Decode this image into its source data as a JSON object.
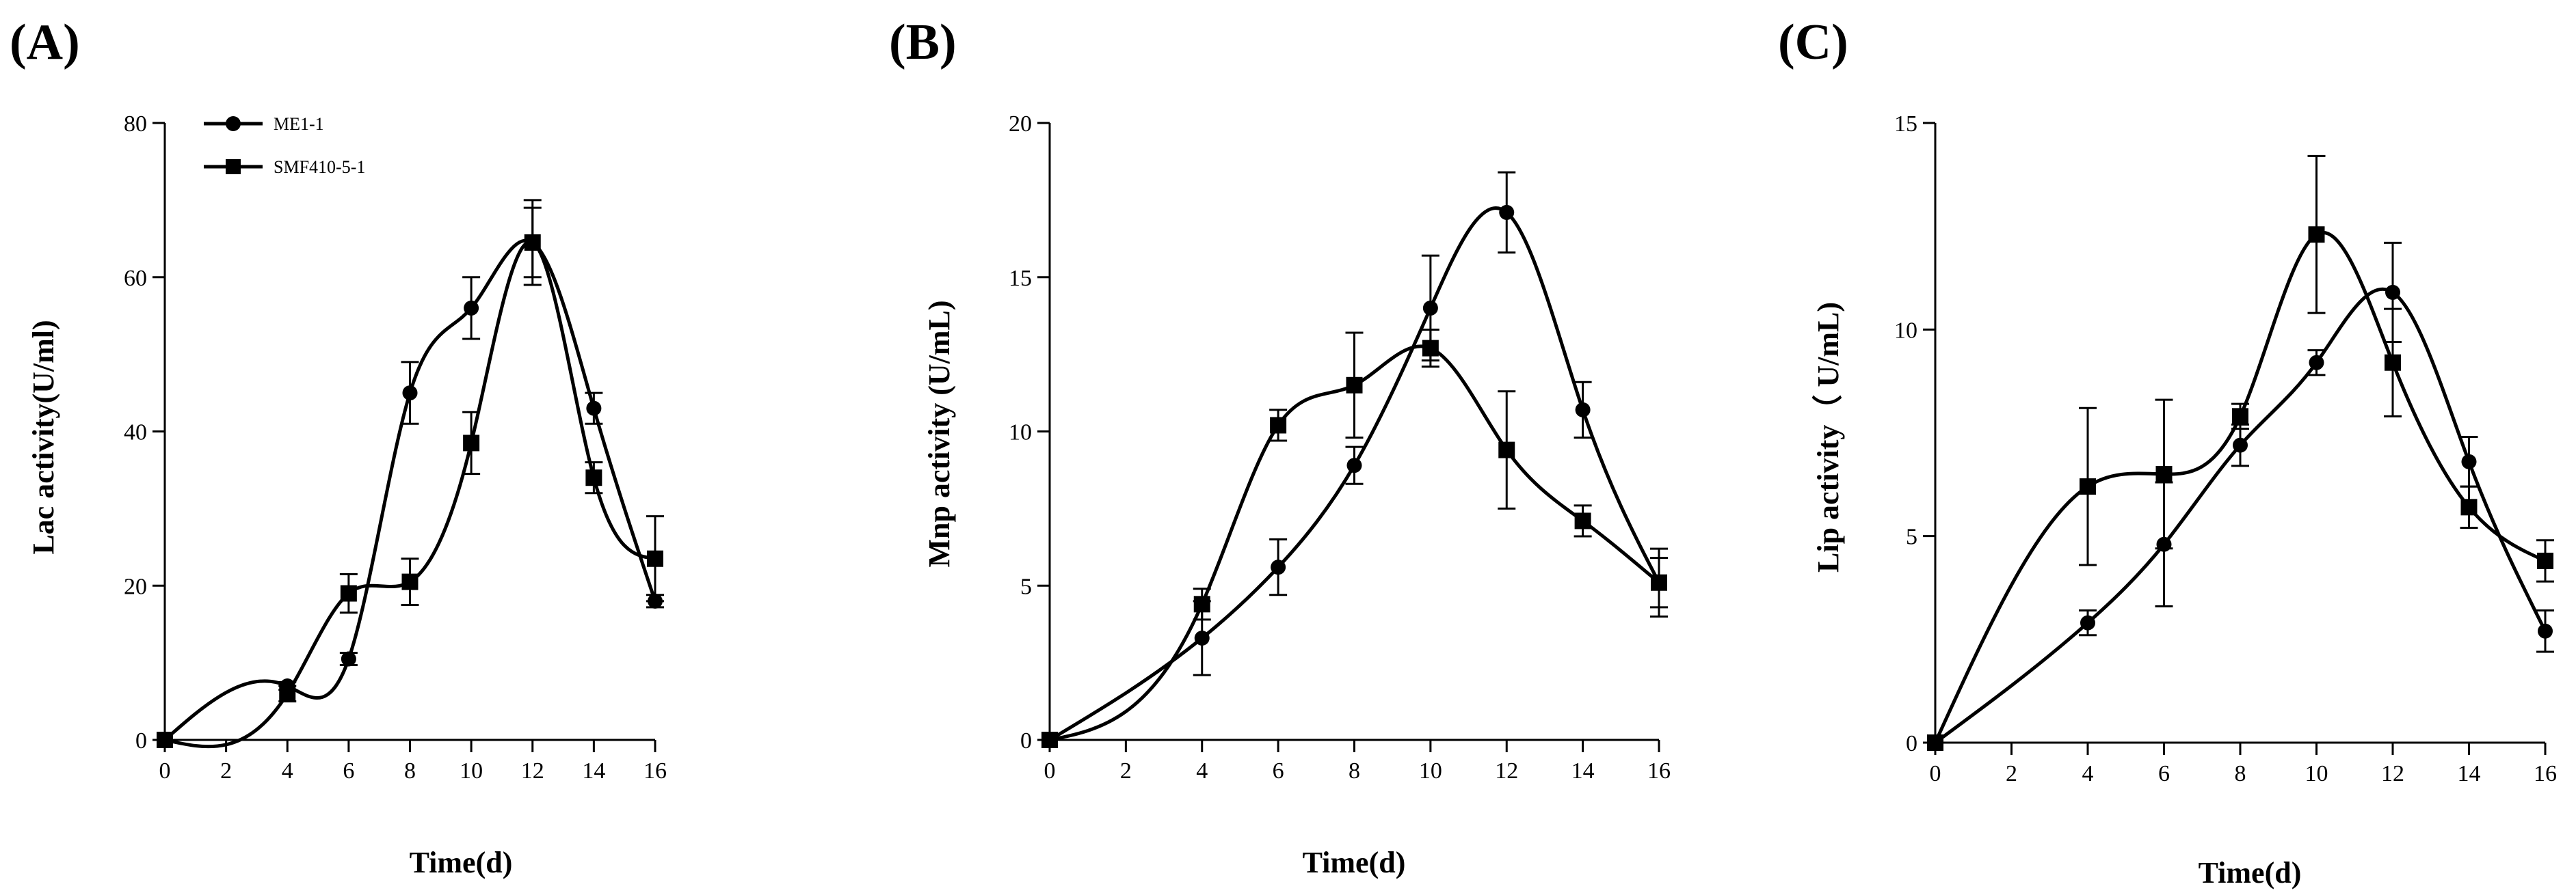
{
  "chart_data": [
    {
      "type": "line",
      "panel_label": "(A)",
      "xlabel": "Time(d)",
      "ylabel": "Lac  activity(U/ml)",
      "x": [
        0,
        4,
        6,
        8,
        10,
        12,
        14,
        16
      ],
      "xlim": [
        0,
        16
      ],
      "ylim": [
        0,
        80
      ],
      "xticks": [
        0,
        2,
        4,
        6,
        8,
        10,
        12,
        14,
        16
      ],
      "yticks": [
        0,
        20,
        40,
        60,
        80
      ],
      "legend": "top-left",
      "series": [
        {
          "name": "ME1-1",
          "marker": "circle",
          "values": [
            0,
            7,
            10.5,
            45,
            56,
            64.5,
            43,
            18
          ],
          "errors": [
            0,
            0.5,
            0.8,
            4,
            4,
            5.5,
            2,
            0.8
          ]
        },
        {
          "name": "SMF410-5-1",
          "marker": "square",
          "values": [
            0,
            6,
            19,
            20.5,
            38.5,
            64.5,
            34,
            23.5
          ],
          "errors": [
            0,
            1,
            2.5,
            3,
            4,
            4.5,
            2,
            5.5
          ]
        }
      ]
    },
    {
      "type": "line",
      "panel_label": "(B)",
      "xlabel": "Time(d)",
      "ylabel": "Mnp activity (U/mL)",
      "x": [
        0,
        4,
        6,
        8,
        10,
        12,
        14,
        16
      ],
      "xlim": [
        0,
        16
      ],
      "ylim": [
        0,
        20
      ],
      "xticks": [
        0,
        2,
        4,
        6,
        8,
        10,
        12,
        14,
        16
      ],
      "yticks": [
        0,
        5,
        10,
        15,
        20
      ],
      "series": [
        {
          "name": "ME1-1",
          "marker": "circle",
          "values": [
            0,
            3.3,
            5.6,
            8.9,
            14,
            17.1,
            10.7,
            5.1
          ],
          "errors": [
            0,
            1.2,
            0.9,
            0.6,
            1.7,
            1.3,
            0.9,
            0.8
          ]
        },
        {
          "name": "SMF410-5-1",
          "marker": "square",
          "values": [
            0,
            4.4,
            10.2,
            11.5,
            12.7,
            9.4,
            7.1,
            5.1
          ],
          "errors": [
            0,
            0.5,
            0.5,
            1.7,
            0.6,
            1.9,
            0.5,
            1.1
          ]
        }
      ]
    },
    {
      "type": "line",
      "panel_label": "(C)",
      "xlabel": "Time(d)",
      "ylabel": "Lip activity（ U/mL)",
      "x": [
        0,
        4,
        6,
        8,
        10,
        12,
        14,
        16
      ],
      "xlim": [
        0,
        16
      ],
      "ylim": [
        0,
        15
      ],
      "xticks": [
        0,
        2,
        4,
        6,
        8,
        10,
        12,
        14,
        16
      ],
      "yticks": [
        0,
        5,
        10,
        15
      ],
      "series": [
        {
          "name": "ME1-1",
          "marker": "circle",
          "values": [
            0,
            2.9,
            4.8,
            7.2,
            9.2,
            10.9,
            6.8,
            2.7
          ],
          "errors": [
            0,
            0.3,
            1.5,
            0.5,
            0.3,
            1.2,
            0.6,
            0.5
          ]
        },
        {
          "name": "SMF410-5-1",
          "marker": "square",
          "values": [
            0,
            6.2,
            6.5,
            7.9,
            12.3,
            9.2,
            5.7,
            4.4
          ],
          "errors": [
            0,
            1.9,
            1.8,
            0.3,
            1.9,
            1.3,
            0.5,
            0.5
          ]
        }
      ]
    }
  ]
}
